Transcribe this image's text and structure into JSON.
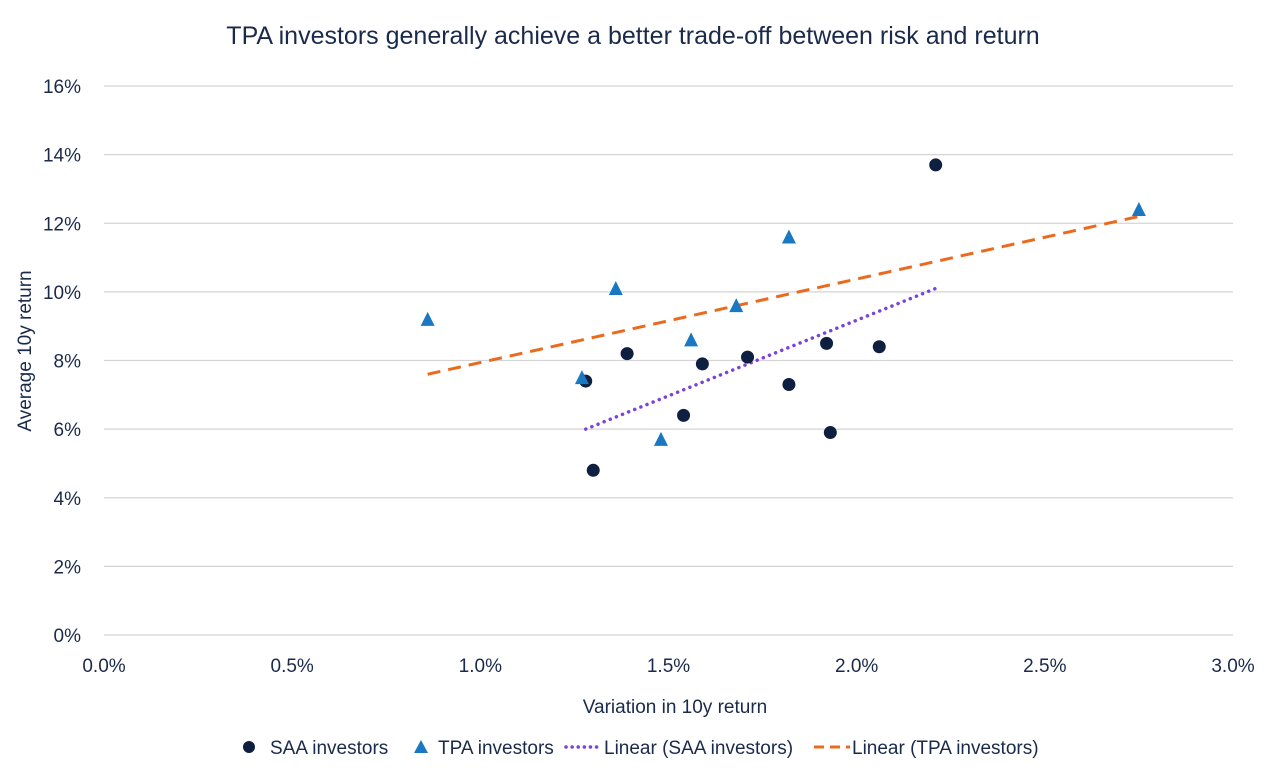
{
  "chart_data": {
    "type": "scatter",
    "title": "TPA investors generally achieve a better trade-off between risk and return",
    "xlabel": "Variation in 10y return",
    "ylabel": "Average 10y return",
    "xlim": [
      0,
      3.0
    ],
    "ylim": [
      0,
      16
    ],
    "x_ticks": [
      0.0,
      0.5,
      1.0,
      1.5,
      2.0,
      2.5,
      3.0
    ],
    "x_tick_labels": [
      "0.0%",
      "0.5%",
      "1.0%",
      "1.5%",
      "2.0%",
      "2.5%",
      "3.0%"
    ],
    "y_ticks": [
      0,
      2,
      4,
      6,
      8,
      10,
      12,
      14,
      16
    ],
    "y_tick_labels": [
      "0%",
      "2%",
      "4%",
      "6%",
      "8%",
      "10%",
      "12%",
      "14%",
      "16%"
    ],
    "grid": "horizontal",
    "legend_position": "bottom",
    "series": [
      {
        "name": "SAA investors",
        "marker": "circle",
        "color": "#0f1f40",
        "points": [
          {
            "x": 1.28,
            "y": 7.4
          },
          {
            "x": 1.3,
            "y": 4.8
          },
          {
            "x": 1.39,
            "y": 8.2
          },
          {
            "x": 1.54,
            "y": 6.4
          },
          {
            "x": 1.59,
            "y": 7.9
          },
          {
            "x": 1.71,
            "y": 8.1
          },
          {
            "x": 1.82,
            "y": 7.3
          },
          {
            "x": 1.92,
            "y": 8.5
          },
          {
            "x": 1.93,
            "y": 5.9
          },
          {
            "x": 2.06,
            "y": 8.4
          },
          {
            "x": 2.21,
            "y": 13.7
          }
        ]
      },
      {
        "name": "TPA investors",
        "marker": "triangle",
        "color": "#1a78c2",
        "points": [
          {
            "x": 0.86,
            "y": 9.2
          },
          {
            "x": 1.27,
            "y": 7.5
          },
          {
            "x": 1.36,
            "y": 10.1
          },
          {
            "x": 1.48,
            "y": 5.7
          },
          {
            "x": 1.56,
            "y": 8.6
          },
          {
            "x": 1.68,
            "y": 9.6
          },
          {
            "x": 1.82,
            "y": 11.6
          },
          {
            "x": 2.75,
            "y": 12.4
          }
        ]
      }
    ],
    "trendlines": [
      {
        "name": "Linear (SAA investors)",
        "style": "dotted",
        "color": "#7b44d4",
        "start": {
          "x": 1.28,
          "y": 6.0
        },
        "end": {
          "x": 2.21,
          "y": 10.1
        }
      },
      {
        "name": "Linear (TPA investors)",
        "style": "dashed",
        "color": "#ea6a1f",
        "start": {
          "x": 0.86,
          "y": 7.6
        },
        "end": {
          "x": 2.75,
          "y": 12.2
        }
      }
    ]
  }
}
